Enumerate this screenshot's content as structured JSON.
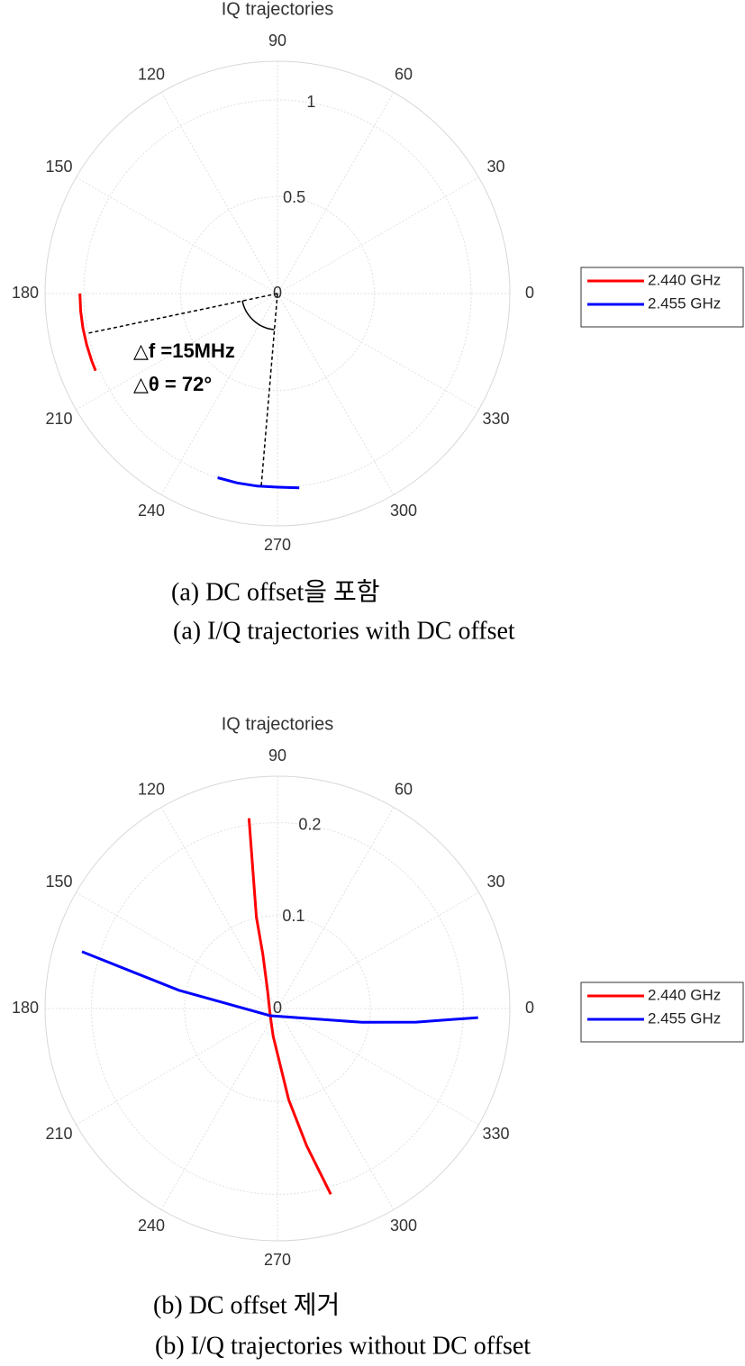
{
  "chart_data": [
    {
      "type": "polar",
      "title": "IQ trajectories",
      "thetaticks": [
        0,
        30,
        60,
        90,
        120,
        150,
        180,
        210,
        240,
        270,
        300,
        330
      ],
      "rlim": [
        0,
        1.2
      ],
      "rticks": [
        0,
        0.5,
        1
      ],
      "grid": true,
      "legend": "east",
      "series": [
        {
          "name": "2.440 GHz",
          "color": "#ff0000",
          "theta": [
            180,
            185,
            190,
            195,
            200,
            203
          ],
          "values": [
            1.02,
            1.02,
            1.02,
            1.02,
            1.02,
            1.02
          ]
        },
        {
          "name": "2.455 GHz",
          "color": "#0000ff",
          "theta": [
            252,
            258,
            264,
            270,
            276.4
          ],
          "values": [
            1.0,
            1.0,
            1.0,
            1.0,
            1.01
          ]
        }
      ],
      "annotations": [
        "△f =15MHz",
        "△θ = 72°"
      ],
      "captions": [
        "(a) DC offset을 포함",
        "(a) I/Q trajectories with DC offset"
      ]
    },
    {
      "type": "polar",
      "title": "IQ trajectories",
      "thetaticks": [
        0,
        30,
        60,
        90,
        120,
        150,
        180,
        210,
        240,
        270,
        300,
        330
      ],
      "rlim": [
        0,
        0.25
      ],
      "rticks": [
        0,
        0.1,
        0.2
      ],
      "grid": true,
      "legend": "east",
      "series": [
        {
          "name": "2.440 GHz",
          "color": "#ff0000",
          "theta": [
            98.5,
            103,
            105,
            119,
            225,
            261,
            277,
            282,
            286
          ],
          "values": [
            0.207,
            0.101,
            0.061,
            0.022,
            0.011,
            0.03,
            0.099,
            0.151,
            0.208
          ]
        },
        {
          "name": "2.455 GHz",
          "color": "#0000ff",
          "theta": [
            163.8,
            169.5,
            225,
            350.7,
            354.4,
            357.4
          ],
          "values": [
            0.219,
            0.108,
            0.011,
            0.092,
            0.15,
            0.216
          ]
        }
      ],
      "captions": [
        "(b) DC offset 제거",
        "(b) I/Q trajectories without DC offset"
      ]
    }
  ]
}
